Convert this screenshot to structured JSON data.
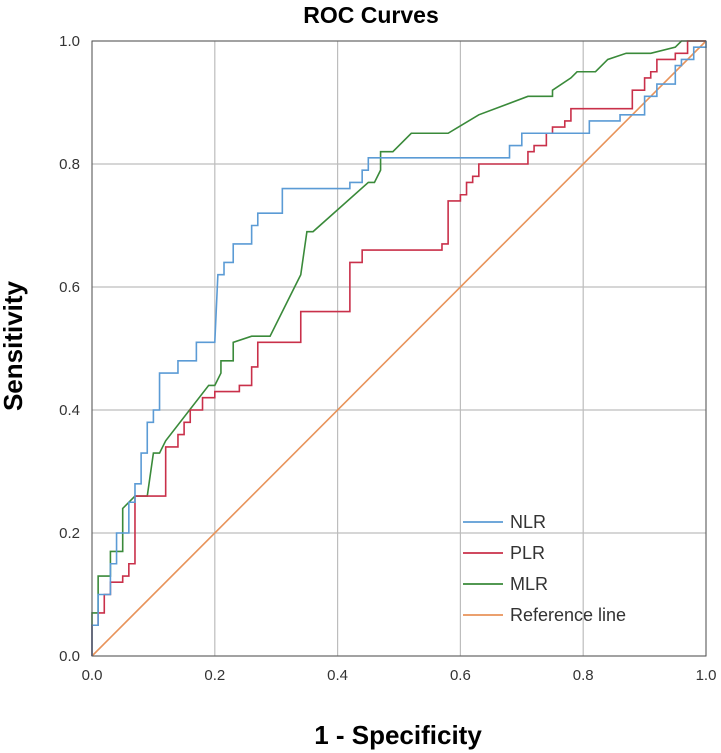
{
  "chart_data": {
    "type": "line",
    "title": "ROC Curves",
    "xlabel": "1 - Specificity",
    "ylabel": "Sensitivity",
    "xlim": [
      0,
      1
    ],
    "ylim": [
      0,
      1
    ],
    "x_ticks": [
      "0.0",
      "0.2",
      "0.4",
      "0.6",
      "0.8",
      "1.0"
    ],
    "y_ticks": [
      "0.0",
      "0.2",
      "0.4",
      "0.6",
      "0.8",
      "1.0"
    ],
    "grid": true,
    "legend_position": "bottom-right",
    "series": [
      {
        "name": "NLR",
        "color": "#5b9bd5",
        "points": [
          [
            0,
            0
          ],
          [
            0,
            0.05
          ],
          [
            0.01,
            0.05
          ],
          [
            0.01,
            0.1
          ],
          [
            0.03,
            0.1
          ],
          [
            0.03,
            0.15
          ],
          [
            0.04,
            0.15
          ],
          [
            0.04,
            0.2
          ],
          [
            0.06,
            0.2
          ],
          [
            0.06,
            0.25
          ],
          [
            0.07,
            0.25
          ],
          [
            0.07,
            0.28
          ],
          [
            0.08,
            0.28
          ],
          [
            0.08,
            0.33
          ],
          [
            0.09,
            0.33
          ],
          [
            0.09,
            0.38
          ],
          [
            0.1,
            0.38
          ],
          [
            0.1,
            0.4
          ],
          [
            0.11,
            0.4
          ],
          [
            0.11,
            0.46
          ],
          [
            0.14,
            0.46
          ],
          [
            0.14,
            0.48
          ],
          [
            0.17,
            0.48
          ],
          [
            0.17,
            0.51
          ],
          [
            0.2,
            0.51
          ],
          [
            0.205,
            0.62
          ],
          [
            0.215,
            0.62
          ],
          [
            0.215,
            0.64
          ],
          [
            0.23,
            0.64
          ],
          [
            0.23,
            0.67
          ],
          [
            0.26,
            0.67
          ],
          [
            0.26,
            0.7
          ],
          [
            0.27,
            0.7
          ],
          [
            0.27,
            0.72
          ],
          [
            0.31,
            0.72
          ],
          [
            0.31,
            0.76
          ],
          [
            0.42,
            0.76
          ],
          [
            0.42,
            0.77
          ],
          [
            0.44,
            0.77
          ],
          [
            0.44,
            0.79
          ],
          [
            0.45,
            0.79
          ],
          [
            0.45,
            0.81
          ],
          [
            0.68,
            0.81
          ],
          [
            0.68,
            0.83
          ],
          [
            0.7,
            0.83
          ],
          [
            0.7,
            0.85
          ],
          [
            0.81,
            0.85
          ],
          [
            0.81,
            0.87
          ],
          [
            0.86,
            0.87
          ],
          [
            0.86,
            0.88
          ],
          [
            0.9,
            0.88
          ],
          [
            0.9,
            0.91
          ],
          [
            0.92,
            0.91
          ],
          [
            0.92,
            0.93
          ],
          [
            0.95,
            0.93
          ],
          [
            0.95,
            0.96
          ],
          [
            0.96,
            0.96
          ],
          [
            0.96,
            0.97
          ],
          [
            0.98,
            0.97
          ],
          [
            0.98,
            0.99
          ],
          [
            1,
            0.99
          ],
          [
            1,
            1
          ]
        ]
      },
      {
        "name": "PLR",
        "color": "#c9304a",
        "points": [
          [
            0,
            0
          ],
          [
            0,
            0.05
          ],
          [
            0.01,
            0.05
          ],
          [
            0.01,
            0.07
          ],
          [
            0.02,
            0.07
          ],
          [
            0.02,
            0.1
          ],
          [
            0.03,
            0.1
          ],
          [
            0.03,
            0.12
          ],
          [
            0.05,
            0.12
          ],
          [
            0.05,
            0.13
          ],
          [
            0.06,
            0.13
          ],
          [
            0.06,
            0.15
          ],
          [
            0.07,
            0.15
          ],
          [
            0.07,
            0.26
          ],
          [
            0.12,
            0.26
          ],
          [
            0.12,
            0.34
          ],
          [
            0.14,
            0.34
          ],
          [
            0.14,
            0.36
          ],
          [
            0.15,
            0.36
          ],
          [
            0.15,
            0.38
          ],
          [
            0.16,
            0.38
          ],
          [
            0.16,
            0.4
          ],
          [
            0.18,
            0.4
          ],
          [
            0.18,
            0.42
          ],
          [
            0.2,
            0.42
          ],
          [
            0.2,
            0.43
          ],
          [
            0.24,
            0.43
          ],
          [
            0.24,
            0.44
          ],
          [
            0.26,
            0.44
          ],
          [
            0.26,
            0.47
          ],
          [
            0.27,
            0.47
          ],
          [
            0.27,
            0.51
          ],
          [
            0.34,
            0.51
          ],
          [
            0.34,
            0.56
          ],
          [
            0.42,
            0.56
          ],
          [
            0.42,
            0.64
          ],
          [
            0.44,
            0.64
          ],
          [
            0.44,
            0.66
          ],
          [
            0.57,
            0.66
          ],
          [
            0.57,
            0.67
          ],
          [
            0.58,
            0.67
          ],
          [
            0.58,
            0.74
          ],
          [
            0.6,
            0.74
          ],
          [
            0.6,
            0.75
          ],
          [
            0.61,
            0.75
          ],
          [
            0.61,
            0.77
          ],
          [
            0.62,
            0.77
          ],
          [
            0.62,
            0.78
          ],
          [
            0.63,
            0.78
          ],
          [
            0.63,
            0.8
          ],
          [
            0.71,
            0.8
          ],
          [
            0.71,
            0.82
          ],
          [
            0.72,
            0.82
          ],
          [
            0.72,
            0.83
          ],
          [
            0.74,
            0.83
          ],
          [
            0.74,
            0.85
          ],
          [
            0.75,
            0.85
          ],
          [
            0.75,
            0.86
          ],
          [
            0.77,
            0.86
          ],
          [
            0.77,
            0.87
          ],
          [
            0.78,
            0.87
          ],
          [
            0.78,
            0.89
          ],
          [
            0.88,
            0.89
          ],
          [
            0.88,
            0.92
          ],
          [
            0.9,
            0.92
          ],
          [
            0.9,
            0.94
          ],
          [
            0.91,
            0.94
          ],
          [
            0.91,
            0.95
          ],
          [
            0.92,
            0.95
          ],
          [
            0.92,
            0.97
          ],
          [
            0.95,
            0.97
          ],
          [
            0.95,
            0.98
          ],
          [
            0.97,
            0.98
          ],
          [
            0.97,
            1
          ],
          [
            1,
            1
          ]
        ]
      },
      {
        "name": "MLR",
        "color": "#3a8a3a",
        "points": [
          [
            0,
            0
          ],
          [
            0,
            0.07
          ],
          [
            0.01,
            0.07
          ],
          [
            0.01,
            0.13
          ],
          [
            0.03,
            0.13
          ],
          [
            0.03,
            0.17
          ],
          [
            0.05,
            0.17
          ],
          [
            0.05,
            0.24
          ],
          [
            0.07,
            0.26
          ],
          [
            0.09,
            0.26
          ],
          [
            0.1,
            0.33
          ],
          [
            0.11,
            0.33
          ],
          [
            0.12,
            0.35
          ],
          [
            0.19,
            0.44
          ],
          [
            0.2,
            0.44
          ],
          [
            0.21,
            0.46
          ],
          [
            0.21,
            0.48
          ],
          [
            0.23,
            0.48
          ],
          [
            0.23,
            0.51
          ],
          [
            0.26,
            0.52
          ],
          [
            0.29,
            0.52
          ],
          [
            0.33,
            0.6
          ],
          [
            0.34,
            0.62
          ],
          [
            0.35,
            0.69
          ],
          [
            0.36,
            0.69
          ],
          [
            0.45,
            0.77
          ],
          [
            0.46,
            0.77
          ],
          [
            0.47,
            0.79
          ],
          [
            0.47,
            0.82
          ],
          [
            0.49,
            0.82
          ],
          [
            0.52,
            0.85
          ],
          [
            0.58,
            0.85
          ],
          [
            0.63,
            0.88
          ],
          [
            0.71,
            0.91
          ],
          [
            0.75,
            0.91
          ],
          [
            0.75,
            0.92
          ],
          [
            0.78,
            0.94
          ],
          [
            0.79,
            0.95
          ],
          [
            0.82,
            0.95
          ],
          [
            0.84,
            0.97
          ],
          [
            0.87,
            0.98
          ],
          [
            0.91,
            0.98
          ],
          [
            0.95,
            0.99
          ],
          [
            0.96,
            1
          ],
          [
            1,
            1
          ]
        ]
      },
      {
        "name": "Reference line",
        "color": "#e8935a",
        "points": [
          [
            0,
            0
          ],
          [
            1,
            1
          ]
        ]
      }
    ]
  }
}
